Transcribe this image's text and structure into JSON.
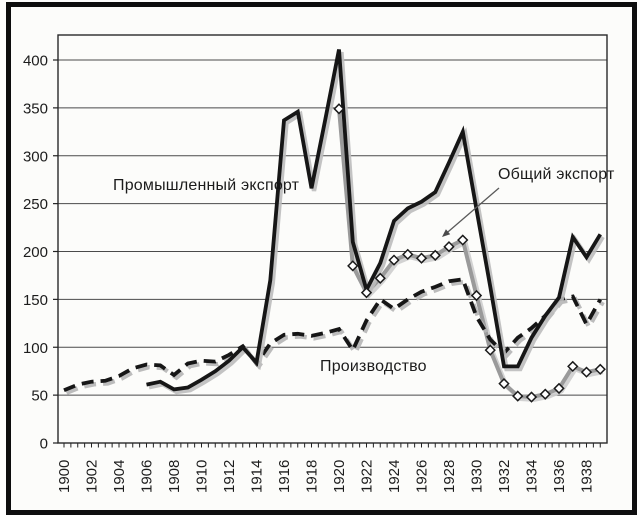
{
  "figure": {
    "background": "#fcfcfa",
    "frame_color": "#0d0d0d",
    "plot_border_color": "#2a2a2a",
    "gridline_color": "#4a4a4a",
    "text_color": "#1c1c1c"
  },
  "chart_data": {
    "type": "line",
    "title": "",
    "xlabel": "",
    "ylabel": "",
    "x_range": [
      1900,
      1939
    ],
    "ylim": [
      0,
      425
    ],
    "grid": "horizontal",
    "legend_position": "none",
    "y_tick_labels": [
      "0",
      "50",
      "100",
      "150",
      "200",
      "250",
      "300",
      "350",
      "400"
    ],
    "y_tick_values": [
      0,
      50,
      100,
      150,
      200,
      250,
      300,
      350,
      400
    ],
    "x_tick_labels": [
      "1900",
      "1902",
      "1904",
      "1906",
      "1908",
      "1910",
      "1912",
      "1914",
      "1916",
      "1918",
      "1920",
      "1922",
      "1924",
      "1926",
      "1928",
      "1930",
      "1932",
      "1934",
      "1936",
      "1938"
    ],
    "series": [
      {
        "name": "Общий экспорт",
        "style": "solid",
        "color": "#9a9a9a",
        "shadow_color": "#cdcdcd",
        "width": 4,
        "marker": "diamond",
        "marker_fill": "#ffffff",
        "marker_stroke": "#1a1a1a",
        "points": [
          [
            1920,
            349
          ],
          [
            1921,
            185
          ],
          [
            1922,
            157
          ],
          [
            1923,
            172
          ],
          [
            1924,
            191
          ],
          [
            1925,
            197
          ],
          [
            1926,
            193
          ],
          [
            1927,
            196
          ],
          [
            1928,
            205
          ],
          [
            1929,
            212
          ],
          [
            1930,
            154
          ],
          [
            1931,
            97
          ],
          [
            1932,
            62
          ],
          [
            1933,
            49
          ],
          [
            1934,
            48
          ],
          [
            1935,
            51
          ],
          [
            1936,
            57
          ],
          [
            1937,
            80
          ],
          [
            1938,
            74
          ],
          [
            1939,
            77
          ]
        ]
      },
      {
        "name": "Производство",
        "style": "dashed",
        "color": "#161616",
        "shadow_color": "#b5b5b5",
        "width": 3.8,
        "marker": "none",
        "points": [
          [
            1900,
            55
          ],
          [
            1901,
            61
          ],
          [
            1902,
            64
          ],
          [
            1903,
            65
          ],
          [
            1904,
            70
          ],
          [
            1905,
            78
          ],
          [
            1906,
            82
          ],
          [
            1907,
            81
          ],
          [
            1908,
            71
          ],
          [
            1909,
            83
          ],
          [
            1910,
            86
          ],
          [
            1911,
            85
          ],
          [
            1912,
            92
          ],
          [
            1913,
            101
          ],
          [
            1914,
            83
          ],
          [
            1915,
            104
          ],
          [
            1916,
            113
          ],
          [
            1917,
            114
          ],
          [
            1918,
            112
          ],
          [
            1919,
            115
          ],
          [
            1920,
            119
          ],
          [
            1921,
            97
          ],
          [
            1922,
            128
          ],
          [
            1923,
            150
          ],
          [
            1924,
            140
          ],
          [
            1925,
            150
          ],
          [
            1926,
            158
          ],
          [
            1927,
            163
          ],
          [
            1928,
            169
          ],
          [
            1929,
            171
          ],
          [
            1930,
            132
          ],
          [
            1931,
            108
          ],
          [
            1932,
            94
          ],
          [
            1933,
            110
          ],
          [
            1934,
            120
          ],
          [
            1935,
            133
          ],
          [
            1936,
            150
          ],
          [
            1937,
            153
          ],
          [
            1938,
            124
          ],
          [
            1939,
            150
          ]
        ]
      },
      {
        "name": "Промышленный экспорт",
        "style": "solid",
        "color": "#161616",
        "shadow_color": "#bdbdbd",
        "width": 3.8,
        "marker": "none",
        "points": [
          [
            1906,
            61
          ],
          [
            1907,
            64
          ],
          [
            1908,
            56
          ],
          [
            1909,
            58
          ],
          [
            1910,
            66
          ],
          [
            1911,
            75
          ],
          [
            1912,
            86
          ],
          [
            1913,
            100
          ],
          [
            1914,
            84
          ],
          [
            1915,
            170
          ],
          [
            1916,
            337
          ],
          [
            1917,
            346
          ],
          [
            1918,
            266
          ],
          [
            1919,
            338
          ],
          [
            1920,
            411
          ],
          [
            1921,
            210
          ],
          [
            1922,
            160
          ],
          [
            1923,
            188
          ],
          [
            1924,
            232
          ],
          [
            1925,
            245
          ],
          [
            1926,
            252
          ],
          [
            1927,
            262
          ],
          [
            1928,
            293
          ],
          [
            1929,
            325
          ],
          [
            1930,
            244
          ],
          [
            1931,
            163
          ],
          [
            1932,
            80
          ],
          [
            1933,
            80
          ],
          [
            1934,
            110
          ],
          [
            1935,
            133
          ],
          [
            1936,
            152
          ],
          [
            1937,
            215
          ],
          [
            1938,
            194
          ],
          [
            1939,
            218
          ]
        ]
      }
    ],
    "annotations": [
      {
        "text": "Промышленный экспорт",
        "target_series": "Промышленный экспорт"
      },
      {
        "text": "Общий экспорт",
        "target_series": "Общий экспорт",
        "arrow_from": [
          499,
          188
        ],
        "arrow_to": [
          442,
          237
        ]
      },
      {
        "text": "Производство",
        "target_series": "Производство"
      }
    ]
  }
}
